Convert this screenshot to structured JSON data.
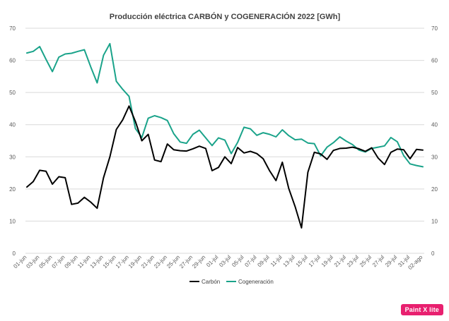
{
  "watermark": "Paint X lite",
  "chart_data": {
    "type": "line",
    "title": "Producción eléctrica CARBÓN y COGENERACIÓN 2022 [GWh]",
    "xlabel": "",
    "ylabel": "",
    "ylim": [
      0,
      70
    ],
    "yticks": [
      0,
      10,
      20,
      30,
      40,
      50,
      60,
      70
    ],
    "grid": true,
    "legend_position": "bottom",
    "x_tick_labels": [
      "01-jun",
      "03-jun",
      "05-jun",
      "07-jun",
      "09-jun",
      "11-jun",
      "13-jun",
      "15-jun",
      "17-jun",
      "19-jun",
      "21-jun",
      "23-jun",
      "25-jun",
      "27-jun",
      "29-jun",
      "01-jul",
      "03-jul",
      "05-jul",
      "07-jul",
      "09-jul",
      "11-jul",
      "13-jul",
      "15-jul",
      "17-jul",
      "19-jul",
      "21-jul",
      "23-jul",
      "25-jul",
      "27-jul",
      "29-jul",
      "31-jul",
      "02-ago"
    ],
    "x": [
      "01-jun",
      "02-jun",
      "03-jun",
      "04-jun",
      "05-jun",
      "06-jun",
      "07-jun",
      "08-jun",
      "09-jun",
      "10-jun",
      "11-jun",
      "12-jun",
      "13-jun",
      "14-jun",
      "15-jun",
      "16-jun",
      "17-jun",
      "18-jun",
      "19-jun",
      "20-jun",
      "21-jun",
      "22-jun",
      "23-jun",
      "24-jun",
      "25-jun",
      "26-jun",
      "27-jun",
      "28-jun",
      "29-jun",
      "30-jun",
      "01-jul",
      "02-jul",
      "03-jul",
      "04-jul",
      "05-jul",
      "06-jul",
      "07-jul",
      "08-jul",
      "09-jul",
      "10-jul",
      "11-jul",
      "12-jul",
      "13-jul",
      "14-jul",
      "15-jul",
      "16-jul",
      "17-jul",
      "18-jul",
      "19-jul",
      "20-jul",
      "21-jul",
      "22-jul",
      "23-jul",
      "24-jul",
      "25-jul",
      "26-jul",
      "27-jul",
      "28-jul",
      "29-jul",
      "30-jul",
      "31-jul",
      "01-ago",
      "02-ago"
    ],
    "series": [
      {
        "name": "Carbón",
        "color": "#000000",
        "values": [
          20.6,
          22.3,
          25.8,
          25.5,
          21.5,
          23.8,
          23.5,
          15.2,
          15.6,
          17.4,
          15.9,
          14.0,
          23.5,
          30.0,
          38.5,
          41.5,
          45.8,
          41.0,
          35.0,
          37.0,
          29.0,
          28.5,
          34.0,
          32.2,
          31.9,
          31.8,
          32.5,
          33.3,
          32.6,
          25.7,
          26.7,
          30.0,
          27.9,
          32.9,
          31.2,
          31.7,
          31.0,
          29.4,
          25.7,
          22.6,
          28.3,
          20.2,
          14.5,
          7.9,
          25.2,
          31.4,
          30.9,
          29.2,
          32.0,
          32.6,
          32.7,
          33.0,
          32.5,
          31.7,
          32.8,
          29.6,
          27.6,
          31.4,
          32.4,
          32.2,
          29.4,
          32.3,
          32.1
        ]
      },
      {
        "name": "Cogeneración",
        "color": "#1aa38a",
        "values": [
          62.3,
          62.8,
          64.3,
          60.3,
          56.5,
          61.0,
          62.0,
          62.2,
          62.8,
          63.3,
          58.0,
          53.0,
          61.6,
          65.2,
          53.5,
          51.0,
          48.8,
          38.8,
          36.0,
          42.0,
          42.8,
          42.2,
          41.3,
          37.2,
          34.6,
          34.2,
          37.0,
          38.3,
          35.9,
          33.5,
          35.9,
          35.2,
          31.0,
          34.5,
          39.2,
          38.7,
          36.7,
          37.5,
          37.0,
          36.2,
          38.4,
          36.6,
          35.3,
          35.5,
          34.3,
          34.1,
          30.3,
          33.0,
          34.4,
          36.2,
          34.9,
          33.8,
          32.1,
          31.5,
          32.6,
          33.0,
          33.4,
          36.0,
          34.7,
          30.4,
          27.8,
          27.3,
          26.9
        ]
      }
    ]
  }
}
